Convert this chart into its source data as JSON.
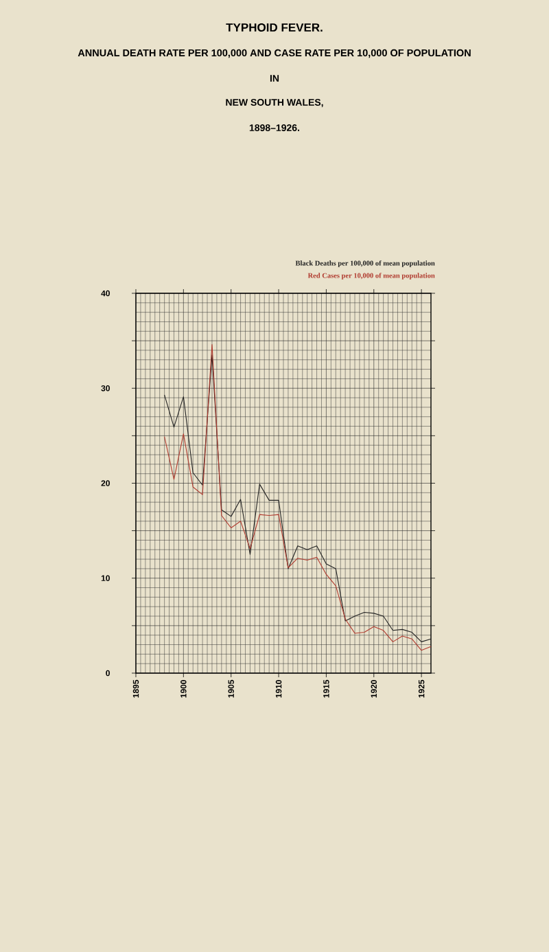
{
  "chart_data": {
    "type": "line",
    "title": "TYPHOID FEVER.",
    "subtitle": "ANNUAL DEATH RATE PER 100,000 AND CASE RATE PER 10,000 OF POPULATION",
    "annotations": [
      "IN",
      "NEW SOUTH WALES,",
      "1898–1926."
    ],
    "x": [
      1898,
      1899,
      1900,
      1901,
      1902,
      1903,
      1904,
      1905,
      1906,
      1907,
      1908,
      1909,
      1910,
      1911,
      1912,
      1913,
      1914,
      1915,
      1916,
      1917,
      1918,
      1919,
      1920,
      1921,
      1922,
      1923,
      1924,
      1925,
      1926
    ],
    "series": [
      {
        "name": "Black Deaths per 100,000 of mean population",
        "color": "#222222",
        "values": [
          29.3,
          25.9,
          29.1,
          21.1,
          19.8,
          33.5,
          17.2,
          16.5,
          18.3,
          12.5,
          19.9,
          18.2,
          18.2,
          11.0,
          13.4,
          13.0,
          13.4,
          11.5,
          11.0,
          5.5,
          6.0,
          6.4,
          6.3,
          6.0,
          4.5,
          4.6,
          4.3,
          3.3,
          3.6
        ]
      },
      {
        "name": "Red Cases per 10,000 of mean population",
        "color": "#b03a2e",
        "values": [
          24.9,
          20.4,
          25.2,
          19.6,
          18.8,
          34.6,
          16.6,
          15.3,
          16.0,
          13.1,
          16.7,
          16.6,
          16.7,
          11.1,
          12.1,
          11.9,
          12.2,
          10.4,
          9.2,
          5.7,
          4.2,
          4.3,
          4.9,
          4.5,
          3.3,
          3.9,
          3.6,
          2.4,
          2.8
        ]
      }
    ],
    "xlim": [
      1895,
      1926
    ],
    "xticks": [
      1895,
      1900,
      1905,
      1910,
      1915,
      1920,
      1925
    ],
    "ylim": [
      0,
      40
    ],
    "yticks": [
      0,
      {
        "value": 5,
        "label": null
      },
      10,
      {
        "value": 15,
        "label": null
      },
      20,
      {
        "value": 25,
        "label": null
      },
      30,
      {
        "value": 35,
        "label": null
      },
      40
    ],
    "grid": true,
    "legend": "top right",
    "marker": "none",
    "line_style": "solid"
  }
}
